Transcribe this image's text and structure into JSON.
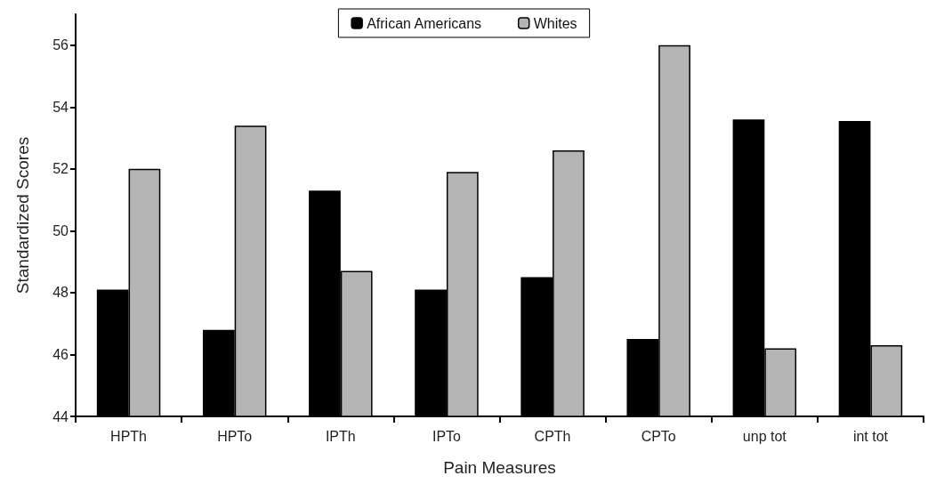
{
  "chart_data": {
    "type": "bar",
    "xlabel": "Pain Measures",
    "ylabel": "Standardized Scores",
    "categories": [
      "HPTh",
      "HPTo",
      "IPTh",
      "IPTo",
      "CPTh",
      "CPTo",
      "unp tot",
      "int tot"
    ],
    "series": [
      {
        "name": "African Americans",
        "color": "#000000",
        "values": [
          48.1,
          46.8,
          51.3,
          48.1,
          48.5,
          46.5,
          53.6,
          53.55
        ]
      },
      {
        "name": "Whites",
        "color": "#b4b4b4",
        "values": [
          52.0,
          53.4,
          48.7,
          51.9,
          52.6,
          56.0,
          46.2,
          46.3
        ]
      }
    ],
    "ylim": [
      44,
      57
    ],
    "yticks": [
      44,
      46,
      48,
      50,
      52,
      54,
      56
    ],
    "grid": false,
    "legend": "top"
  }
}
